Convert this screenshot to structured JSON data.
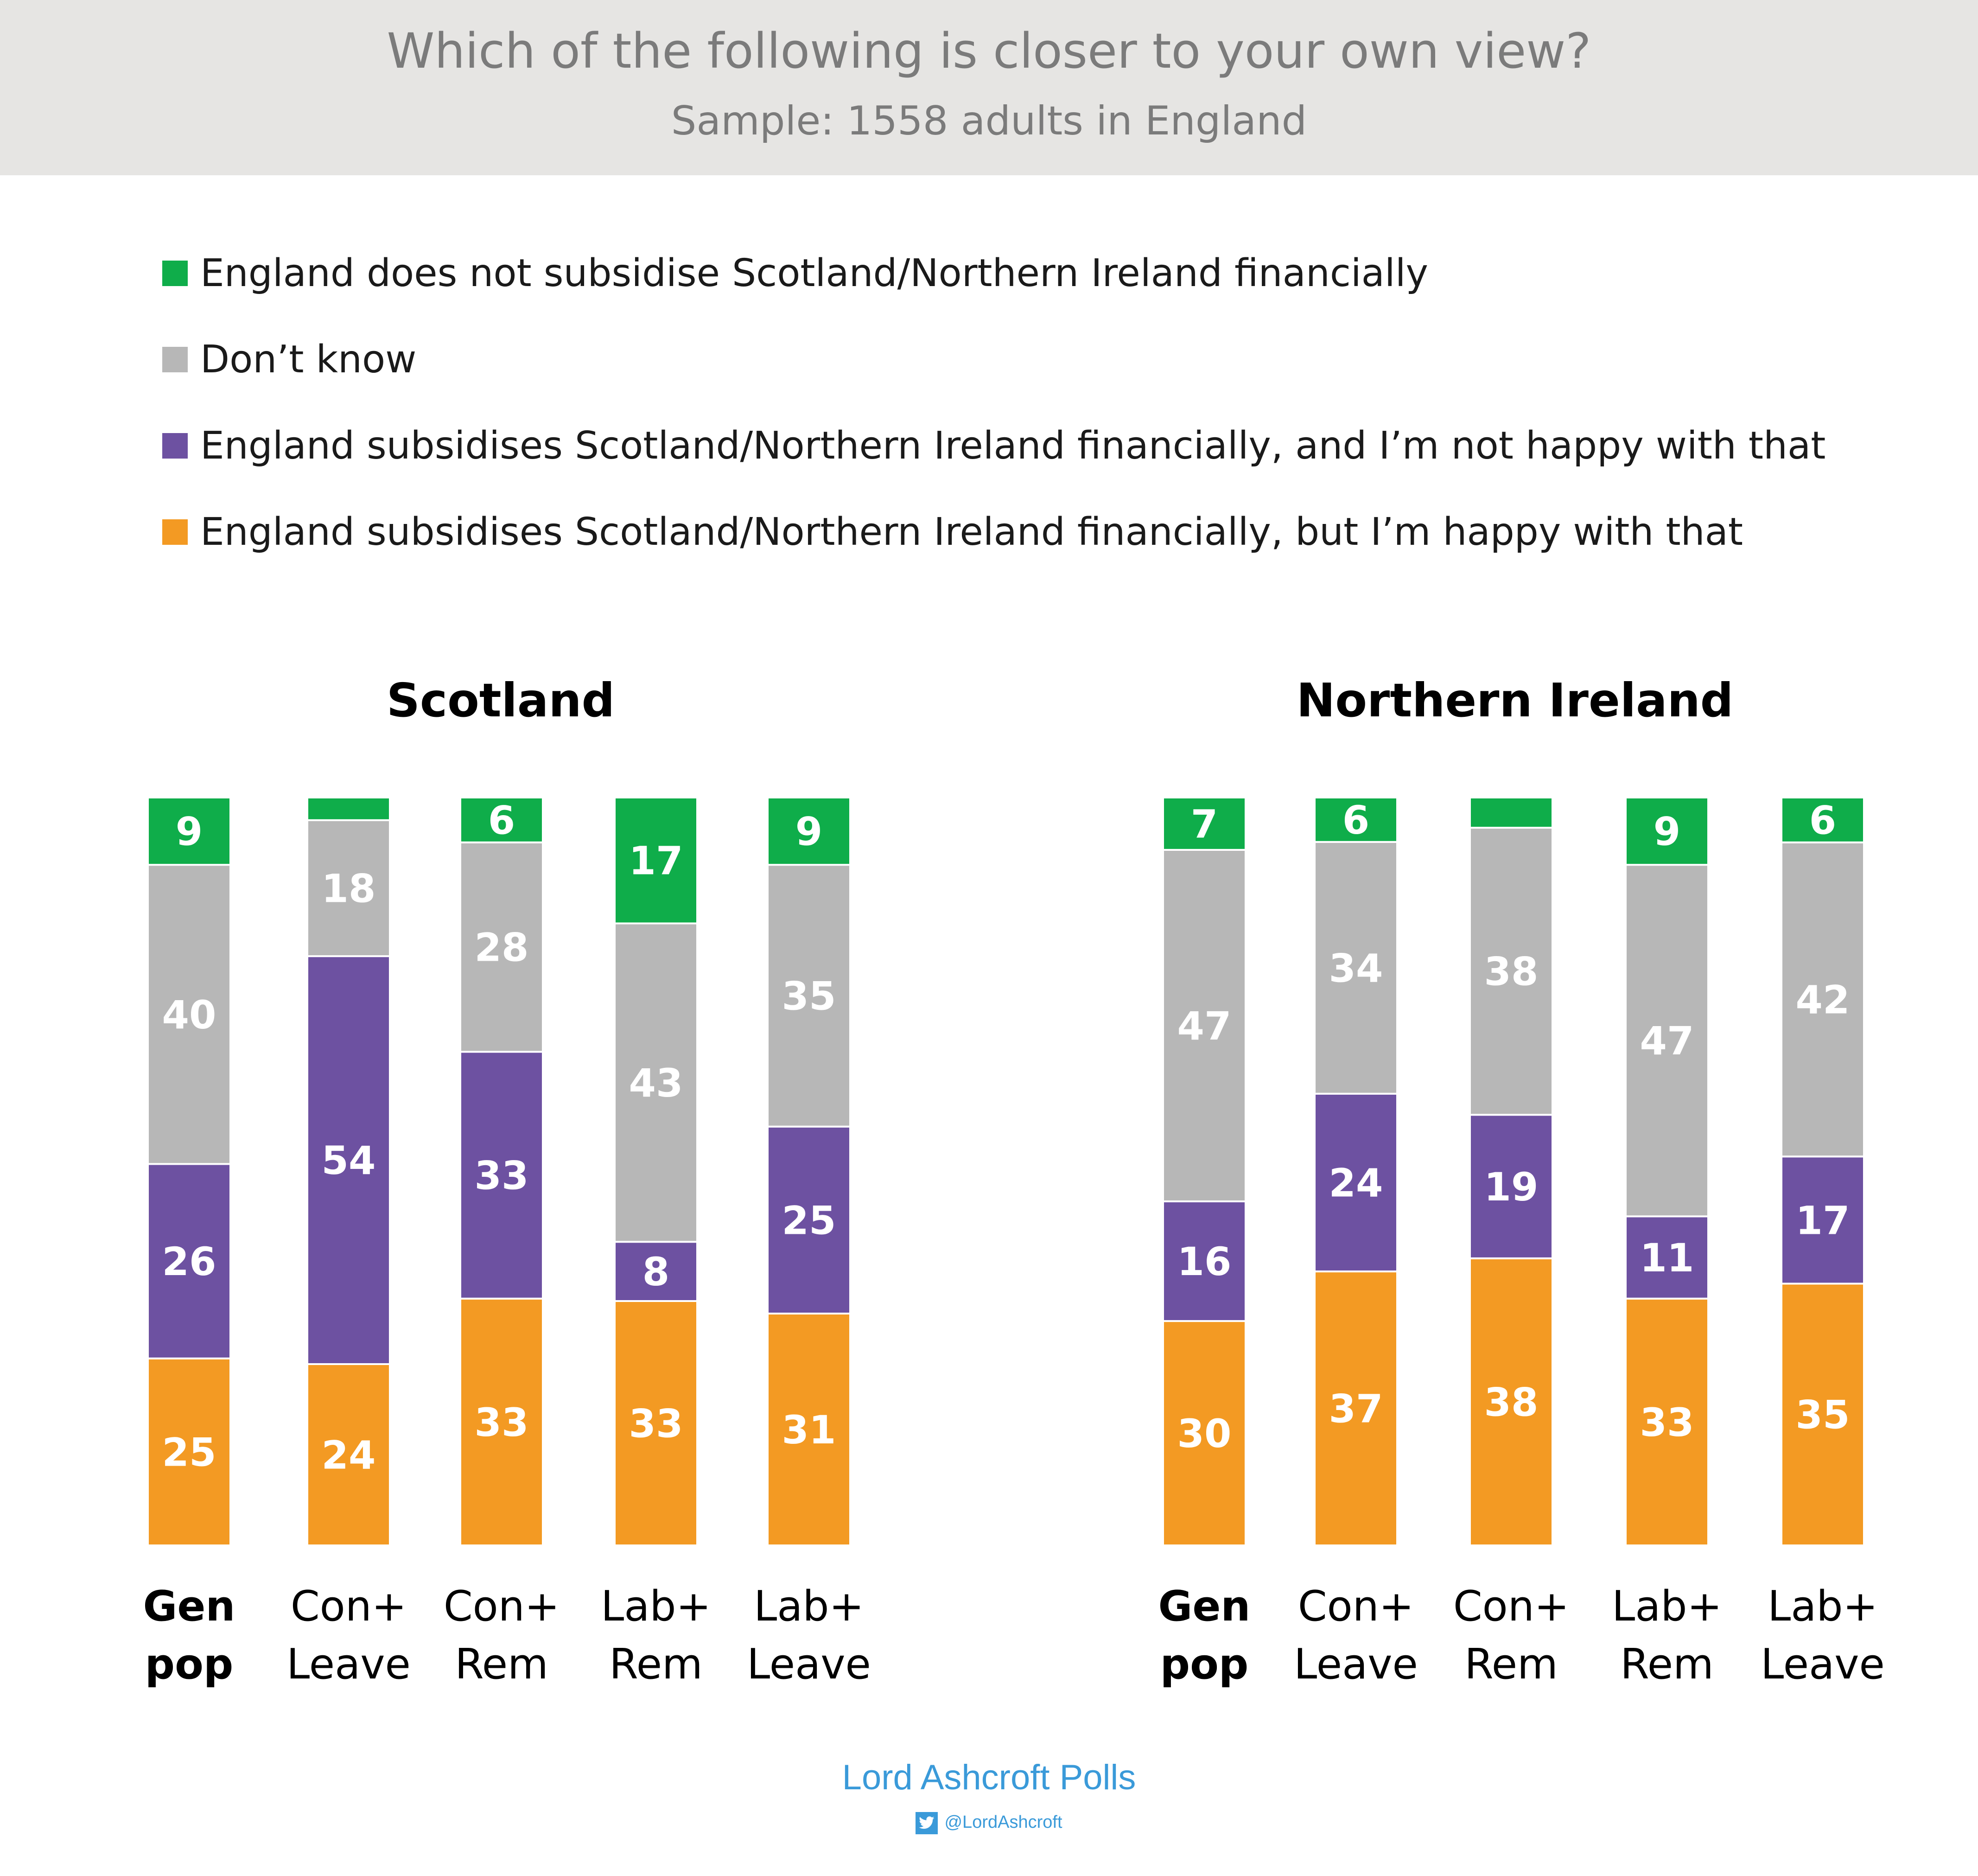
{
  "header": {
    "title": "Which of the following is closer to your own view?",
    "subtitle": "Sample: 1558 adults in England"
  },
  "legend": [
    {
      "label": "England does not subsidise Scotland/Northern Ireland financially",
      "color": "#0fad4a"
    },
    {
      "label": "Don’t  know",
      "color": "#b7b7b7"
    },
    {
      "label": "England subsidises Scotland/Northern Ireland financially, and I’m not happy with that",
      "color": "#6d51a1"
    },
    {
      "label": "England subsidises Scotland/Northern Ireland financially, but I’m happy with that",
      "color": "#f39a23"
    }
  ],
  "chart_data": [
    {
      "type": "bar",
      "stacked": true,
      "title": "Scotland",
      "categories": [
        "Gen pop",
        "Con+ Leave",
        "Con+ Rem",
        "Lab+ Rem",
        "Lab+ Leave"
      ],
      "series": [
        {
          "name": "England subsidises Scotland/Northern Ireland financially, but I’m happy with that",
          "color": "#f39a23",
          "values": [
            25,
            24,
            33,
            33,
            31
          ]
        },
        {
          "name": "England subsidises Scotland/Northern Ireland financially, and I’m not happy with that",
          "color": "#6d51a1",
          "values": [
            26,
            54,
            33,
            8,
            25
          ]
        },
        {
          "name": "Don’t  know",
          "color": "#b7b7b7",
          "values": [
            40,
            18,
            28,
            43,
            35
          ]
        },
        {
          "name": "England does not subsidise Scotland/Northern Ireland financially",
          "color": "#0fad4a",
          "values": [
            9,
            3,
            6,
            17,
            9
          ]
        }
      ],
      "value_labels_hidden": [
        [
          false,
          false,
          false,
          false,
          false
        ],
        [
          false,
          false,
          false,
          false,
          false
        ],
        [
          false,
          false,
          false,
          false,
          false
        ],
        [
          false,
          true,
          false,
          false,
          false
        ]
      ]
    },
    {
      "type": "bar",
      "stacked": true,
      "title": "Northern Ireland",
      "categories": [
        "Gen pop",
        "Con+ Leave",
        "Con+ Rem",
        "Lab+ Rem",
        "Lab+ Leave"
      ],
      "series": [
        {
          "name": "England subsidises Scotland/Northern Ireland financially, but I’m happy with that",
          "color": "#f39a23",
          "values": [
            30,
            37,
            38,
            33,
            35
          ]
        },
        {
          "name": "England subsidises Scotland/Northern Ireland financially, and I’m not happy with that",
          "color": "#6d51a1",
          "values": [
            16,
            24,
            19,
            11,
            17
          ]
        },
        {
          "name": "Don’t  know",
          "color": "#b7b7b7",
          "values": [
            47,
            34,
            38,
            47,
            42
          ]
        },
        {
          "name": "England does not subsidise Scotland/Northern Ireland financially",
          "color": "#0fad4a",
          "values": [
            7,
            6,
            4,
            9,
            6
          ]
        }
      ],
      "value_labels_hidden": [
        [
          false,
          false,
          false,
          false,
          false
        ],
        [
          false,
          false,
          false,
          false,
          false
        ],
        [
          false,
          false,
          false,
          false,
          false
        ],
        [
          false,
          false,
          true,
          false,
          false
        ]
      ]
    }
  ],
  "footer": {
    "brand": "Lord Ashcroft Polls",
    "handle": "@LordAshcroft"
  }
}
